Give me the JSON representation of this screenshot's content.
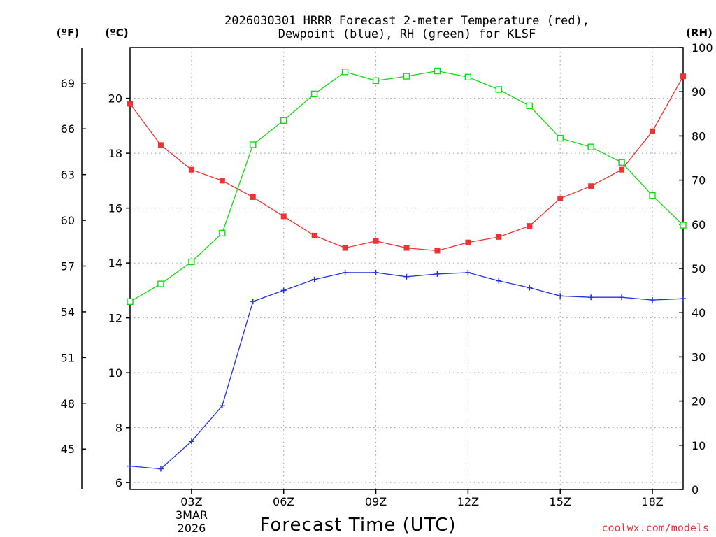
{
  "header": {
    "title_line1": "2026030301 HRRR Forecast 2-meter Temperature (red),",
    "title_line2": "Dewpoint (blue), RH (green) for KLSF"
  },
  "units": {
    "fahrenheit": "(ºF)",
    "celsius": "(ºC)",
    "rh": "(RH)"
  },
  "footer": {
    "date_day": "3MAR",
    "date_year": "2026",
    "credit": "coolwx.com/models"
  },
  "colors": {
    "temperature": "#ee3333",
    "dewpoint": "#2233dd",
    "rh": "#11dd11"
  },
  "chart_data": {
    "type": "line",
    "xlabel": "Forecast Time (UTC)",
    "x_hours": [
      1,
      2,
      3,
      4,
      5,
      6,
      7,
      8,
      9,
      10,
      11,
      12,
      13,
      14,
      15,
      16,
      17,
      18,
      19
    ],
    "xlim": [
      1,
      19
    ],
    "x_ticks": [
      {
        "hour": 3,
        "label": "03Z"
      },
      {
        "hour": 6,
        "label": "06Z"
      },
      {
        "hour": 9,
        "label": "09Z"
      },
      {
        "hour": 12,
        "label": "12Z"
      },
      {
        "hour": 15,
        "label": "15Z"
      },
      {
        "hour": 18,
        "label": "18Z"
      }
    ],
    "y_celsius": {
      "min": 5.75,
      "max": 21.85,
      "ticks": [
        6,
        8,
        10,
        12,
        14,
        16,
        18,
        20
      ]
    },
    "y_fahrenheit_ticks": [
      45,
      48,
      51,
      54,
      57,
      60,
      63,
      66,
      69
    ],
    "y_rh": {
      "min": 0,
      "max": 100,
      "ticks": [
        0,
        10,
        20,
        30,
        40,
        50,
        60,
        70,
        80,
        90,
        100
      ]
    },
    "series": [
      {
        "name": "Temperature",
        "axis": "celsius",
        "color": "#ee3333",
        "marker": "filled-square",
        "values": [
          19.8,
          18.3,
          17.4,
          17.0,
          16.4,
          15.7,
          15.0,
          14.55,
          14.8,
          14.55,
          14.45,
          14.75,
          14.95,
          15.35,
          16.35,
          16.8,
          17.4,
          18.8,
          20.8
        ]
      },
      {
        "name": "Dewpoint",
        "axis": "celsius",
        "color": "#2233dd",
        "marker": "plus",
        "values": [
          6.6,
          6.5,
          7.5,
          8.8,
          12.6,
          13.0,
          13.4,
          13.65,
          13.65,
          13.5,
          13.6,
          13.65,
          13.35,
          13.1,
          12.8,
          12.75,
          12.75,
          12.65,
          12.7
        ]
      },
      {
        "name": "RH",
        "axis": "rh",
        "color": "#11dd11",
        "marker": "open-square",
        "values": [
          42.5,
          46.5,
          51.5,
          58.0,
          78.0,
          83.5,
          89.5,
          94.5,
          92.5,
          93.5,
          94.7,
          93.3,
          90.5,
          86.8,
          79.5,
          77.5,
          74.0,
          66.5,
          59.8
        ]
      }
    ]
  }
}
